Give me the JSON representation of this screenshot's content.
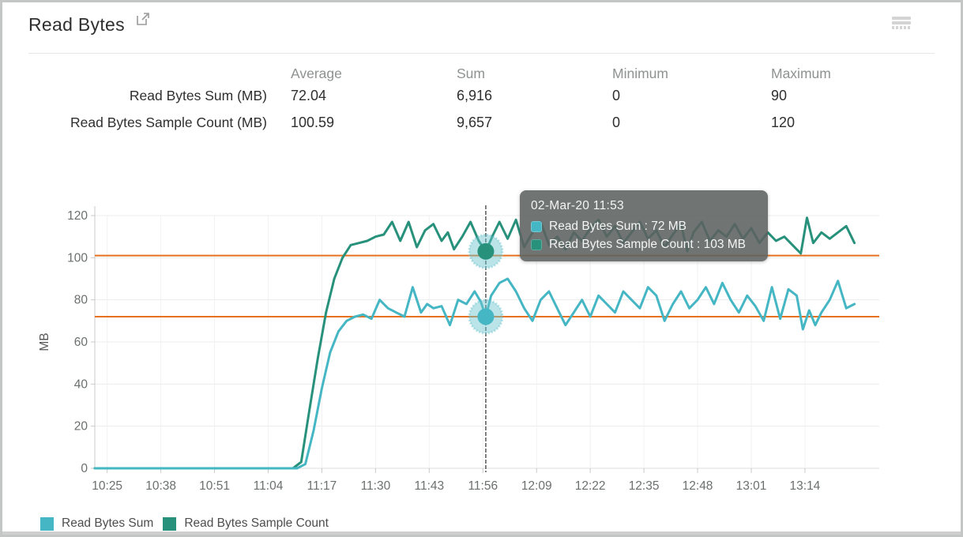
{
  "header": {
    "title": "Read Bytes",
    "external_link_icon": "open-in-new-window",
    "menu_icon": "hamburger-menu"
  },
  "stats": {
    "columns": [
      "Average",
      "Sum",
      "Minimum",
      "Maximum"
    ],
    "rows": [
      {
        "label": "Read Bytes Sum (MB)",
        "average": "72.04",
        "sum": "6,916",
        "minimum": "0",
        "maximum": "90"
      },
      {
        "label": "Read Bytes Sample Count (MB)",
        "average": "100.59",
        "sum": "9,657",
        "minimum": "0",
        "maximum": "120"
      }
    ]
  },
  "tooltip": {
    "title": "02-Mar-20 11:53",
    "rows": [
      {
        "label": "Read Bytes Sum",
        "value": "72 MB",
        "display": "Read Bytes Sum : 72 MB",
        "color": "#45b6c3"
      },
      {
        "label": "Read Bytes Sample Count",
        "value": "103 MB",
        "display": "Read Bytes Sample Count : 103 MB",
        "color": "#28917c"
      }
    ]
  },
  "legend": [
    {
      "label": "Read Bytes Sum",
      "color": "#45b6c3"
    },
    {
      "label": "Read Bytes Sample Count",
      "color": "#28917c"
    }
  ],
  "colors": {
    "series_sum": "#45b6c3",
    "series_count": "#28917c",
    "threshold": "#e8711f",
    "grid": "#ececec",
    "vgrid": "#f2f2f2",
    "axis": "#c9c9c9",
    "tick_text": "#6b6f6e",
    "cursor": "#5f6361",
    "halo": "rgba(105,196,207,0.45)"
  },
  "chart_data": {
    "type": "line",
    "title": "Read Bytes",
    "xlabel": "",
    "ylabel": "MB",
    "ylim": [
      0,
      120
    ],
    "yticks": [
      0,
      20,
      40,
      60,
      80,
      100,
      120
    ],
    "grid": true,
    "legend_position": "bottom-left",
    "x_unit": "minutes since 10:22",
    "x_range": [
      0,
      190
    ],
    "xticks": [
      {
        "t": 3,
        "label": "10:25"
      },
      {
        "t": 16,
        "label": "10:38"
      },
      {
        "t": 29,
        "label": "10:51"
      },
      {
        "t": 42,
        "label": "11:04"
      },
      {
        "t": 55,
        "label": "11:17"
      },
      {
        "t": 68,
        "label": "11:30"
      },
      {
        "t": 81,
        "label": "11:43"
      },
      {
        "t": 94,
        "label": "11:56"
      },
      {
        "t": 107,
        "label": "12:09"
      },
      {
        "t": 120,
        "label": "12:22"
      },
      {
        "t": 133,
        "label": "12:35"
      },
      {
        "t": 146,
        "label": "12:48"
      },
      {
        "t": 159,
        "label": "13:01"
      },
      {
        "t": 172,
        "label": "13:14"
      }
    ],
    "thresholds": [
      {
        "value": 72,
        "color": "#e8711f"
      },
      {
        "value": 101,
        "color": "#e8711f"
      }
    ],
    "cursor": {
      "t": 94.7,
      "time_label": "02-Mar-20 11:53",
      "points": [
        {
          "series": "Read Bytes Sum",
          "value": 72
        },
        {
          "series": "Read Bytes Sample Count",
          "value": 103
        }
      ]
    },
    "series": [
      {
        "name": "Read Bytes Sample Count",
        "color": "#28917c",
        "points": [
          [
            0,
            0
          ],
          [
            8,
            0
          ],
          [
            16,
            0
          ],
          [
            24,
            0
          ],
          [
            32,
            0
          ],
          [
            40,
            0
          ],
          [
            46,
            0
          ],
          [
            48,
            0
          ],
          [
            50,
            3
          ],
          [
            52,
            28
          ],
          [
            54,
            52
          ],
          [
            56,
            74
          ],
          [
            58,
            90
          ],
          [
            60,
            100
          ],
          [
            62,
            106
          ],
          [
            64,
            107
          ],
          [
            66,
            108
          ],
          [
            68,
            110
          ],
          [
            70,
            111
          ],
          [
            72,
            117
          ],
          [
            74,
            108
          ],
          [
            76,
            117
          ],
          [
            78,
            105
          ],
          [
            80,
            113
          ],
          [
            82,
            116
          ],
          [
            84,
            108
          ],
          [
            85.5,
            112
          ],
          [
            87,
            104
          ],
          [
            89,
            110
          ],
          [
            91,
            117
          ],
          [
            93,
            108
          ],
          [
            94.7,
            103
          ],
          [
            96.5,
            111
          ],
          [
            98,
            117
          ],
          [
            100,
            109
          ],
          [
            102,
            118
          ],
          [
            104,
            105
          ],
          [
            106,
            112
          ],
          [
            108,
            117
          ],
          [
            110,
            106
          ],
          [
            112,
            110
          ],
          [
            114,
            104
          ],
          [
            116,
            112
          ],
          [
            118,
            108
          ],
          [
            120,
            114
          ],
          [
            122,
            118
          ],
          [
            124,
            110
          ],
          [
            126,
            115
          ],
          [
            128,
            107
          ],
          [
            130,
            112
          ],
          [
            132,
            117
          ],
          [
            134,
            109
          ],
          [
            136,
            113
          ],
          [
            138,
            105
          ],
          [
            140,
            111
          ],
          [
            142,
            116
          ],
          [
            143.5,
            103
          ],
          [
            145,
            112
          ],
          [
            147,
            117
          ],
          [
            149,
            108
          ],
          [
            151,
            113
          ],
          [
            153,
            110
          ],
          [
            155,
            116
          ],
          [
            157,
            109
          ],
          [
            159,
            114
          ],
          [
            161,
            107
          ],
          [
            163,
            112
          ],
          [
            165,
            108
          ],
          [
            167,
            110
          ],
          [
            169,
            106
          ],
          [
            171,
            102
          ],
          [
            172.5,
            119
          ],
          [
            174,
            107
          ],
          [
            176,
            112
          ],
          [
            178,
            109
          ],
          [
            180,
            112
          ],
          [
            182,
            115
          ],
          [
            184,
            107
          ]
        ]
      },
      {
        "name": "Read Bytes Sum",
        "color": "#45b6c3",
        "points": [
          [
            0,
            0
          ],
          [
            8,
            0
          ],
          [
            16,
            0
          ],
          [
            24,
            0
          ],
          [
            32,
            0
          ],
          [
            40,
            0
          ],
          [
            46,
            0
          ],
          [
            49,
            0
          ],
          [
            51,
            2
          ],
          [
            53,
            18
          ],
          [
            55,
            38
          ],
          [
            57,
            55
          ],
          [
            59,
            65
          ],
          [
            61,
            70
          ],
          [
            63,
            72
          ],
          [
            65,
            73
          ],
          [
            67,
            71
          ],
          [
            69,
            80
          ],
          [
            71,
            76
          ],
          [
            73,
            74
          ],
          [
            75,
            72
          ],
          [
            77,
            86
          ],
          [
            79,
            74
          ],
          [
            80.5,
            78
          ],
          [
            82,
            76
          ],
          [
            84,
            77
          ],
          [
            86,
            68
          ],
          [
            88,
            80
          ],
          [
            90,
            78
          ],
          [
            92,
            84
          ],
          [
            93.5,
            79
          ],
          [
            94.7,
            72
          ],
          [
            96,
            82
          ],
          [
            98,
            88
          ],
          [
            100,
            90
          ],
          [
            102,
            84
          ],
          [
            104,
            76
          ],
          [
            106,
            70
          ],
          [
            108,
            80
          ],
          [
            110,
            84
          ],
          [
            112,
            76
          ],
          [
            114,
            68
          ],
          [
            116,
            74
          ],
          [
            118,
            80
          ],
          [
            120,
            72
          ],
          [
            122,
            82
          ],
          [
            124,
            78
          ],
          [
            126,
            74
          ],
          [
            128,
            84
          ],
          [
            130,
            80
          ],
          [
            132,
            76
          ],
          [
            134,
            86
          ],
          [
            136,
            82
          ],
          [
            138,
            70
          ],
          [
            140,
            78
          ],
          [
            142,
            84
          ],
          [
            144,
            76
          ],
          [
            146,
            80
          ],
          [
            148,
            86
          ],
          [
            150,
            78
          ],
          [
            152,
            88
          ],
          [
            154,
            80
          ],
          [
            156,
            74
          ],
          [
            158,
            82
          ],
          [
            160,
            77
          ],
          [
            162,
            70
          ],
          [
            164,
            86
          ],
          [
            166,
            71
          ],
          [
            168,
            85
          ],
          [
            170,
            82
          ],
          [
            171.5,
            66
          ],
          [
            173,
            75
          ],
          [
            174.5,
            68
          ],
          [
            176,
            74
          ],
          [
            178,
            80
          ],
          [
            180,
            89
          ],
          [
            182,
            76
          ],
          [
            184,
            78
          ]
        ]
      }
    ]
  }
}
